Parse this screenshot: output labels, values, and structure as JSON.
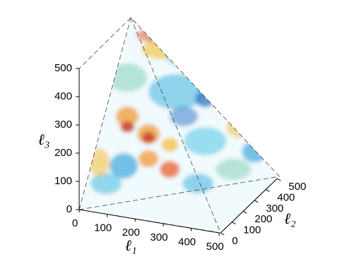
{
  "chart_data": {
    "type": "volume3d",
    "xlabel": "ℓ₁",
    "ylabel": "ℓ₂",
    "zlabel": "ℓ₃",
    "xlim": [
      0,
      500
    ],
    "xticks": [
      0,
      100,
      200,
      300,
      400,
      500
    ],
    "ylim": [
      0,
      500
    ],
    "yticks": [
      0,
      100,
      200,
      300,
      400,
      500
    ],
    "zlim": [
      0,
      500
    ],
    "zticks": [
      0,
      100,
      200,
      300,
      400,
      500
    ]
  }
}
